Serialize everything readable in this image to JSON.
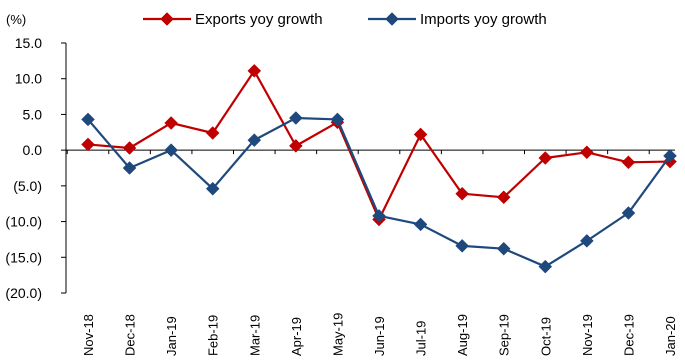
{
  "chart_data": {
    "type": "line",
    "title": "",
    "xlabel": "",
    "ylabel": "(%)",
    "ylim": [
      -20,
      15
    ],
    "yticks": [
      15,
      10,
      5,
      0,
      -5,
      -10,
      -15,
      -20
    ],
    "ytick_labels": [
      "15.0",
      "10.0",
      "5.0",
      "0.0",
      "(5.0)",
      "(10.0)",
      "(15.0)",
      "(20.0)"
    ],
    "grid": false,
    "legend_position": "top-center",
    "categories": [
      "Nov-18",
      "Dec-18",
      "Jan-19",
      "Feb-19",
      "Mar-19",
      "Apr-19",
      "May-19",
      "Jun-19",
      "Jul-19",
      "Aug-19",
      "Sep-19",
      "Oct-19",
      "Nov-19",
      "Dec-19",
      "Jan-20"
    ],
    "series": [
      {
        "name": "Exports yoy growth",
        "color": "#c00000",
        "marker": "diamond",
        "values": [
          0.8,
          0.3,
          3.8,
          2.4,
          11.1,
          0.6,
          3.9,
          -9.7,
          2.2,
          -6.1,
          -6.6,
          -1.1,
          -0.3,
          -1.7,
          -1.6
        ]
      },
      {
        "name": "Imports yoy growth",
        "color": "#1f497d",
        "marker": "diamond",
        "values": [
          4.3,
          -2.5,
          0.0,
          -5.4,
          1.4,
          4.5,
          4.3,
          -9.2,
          -10.4,
          -13.4,
          -13.8,
          -16.3,
          -12.7,
          -8.8,
          -0.8
        ]
      }
    ]
  }
}
